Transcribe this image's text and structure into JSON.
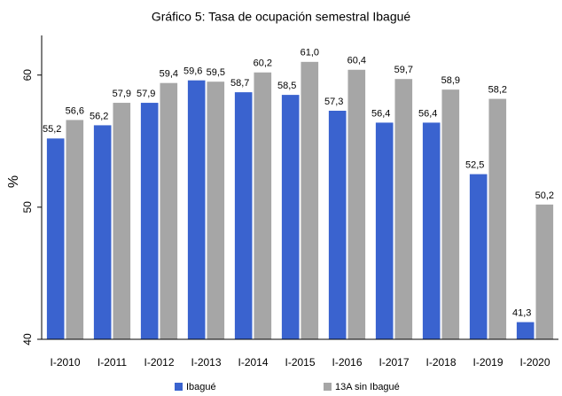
{
  "chart_data": {
    "type": "bar",
    "title": "Gráfico 5: Tasa de ocupación semestral Ibagué",
    "y_label": "%",
    "categories": [
      "I-2010",
      "I-2011",
      "I-2012",
      "I-2013",
      "I-2014",
      "I-2015",
      "I-2016",
      "I-2017",
      "I-2018",
      "I-2019",
      "I-2020"
    ],
    "series": [
      {
        "name": "Ibagué",
        "color": "#3a63cf",
        "values": [
          55.2,
          56.2,
          57.9,
          59.6,
          58.7,
          58.5,
          57.3,
          56.4,
          56.4,
          52.5,
          41.3
        ],
        "value_labels": [
          "55,2",
          "56,2",
          "57,9",
          "59,6",
          "58,7",
          "58,5",
          "57,3",
          "56,4",
          "56,4",
          "52,5",
          "41,3"
        ]
      },
      {
        "name": "13A sin Ibagué",
        "color": "#a6a6a6",
        "values": [
          56.6,
          57.9,
          59.4,
          59.5,
          60.2,
          61.0,
          60.4,
          59.7,
          58.9,
          58.2,
          50.2
        ],
        "value_labels": [
          "56,6",
          "57,9",
          "59,4",
          "59,5",
          "60,2",
          "61,0",
          "60,4",
          "59,7",
          "58,9",
          "58,2",
          "50,2"
        ]
      }
    ],
    "ylim": [
      40,
      63
    ],
    "yticks": [
      40,
      50,
      60
    ],
    "grid": false,
    "legend": "bottom"
  }
}
